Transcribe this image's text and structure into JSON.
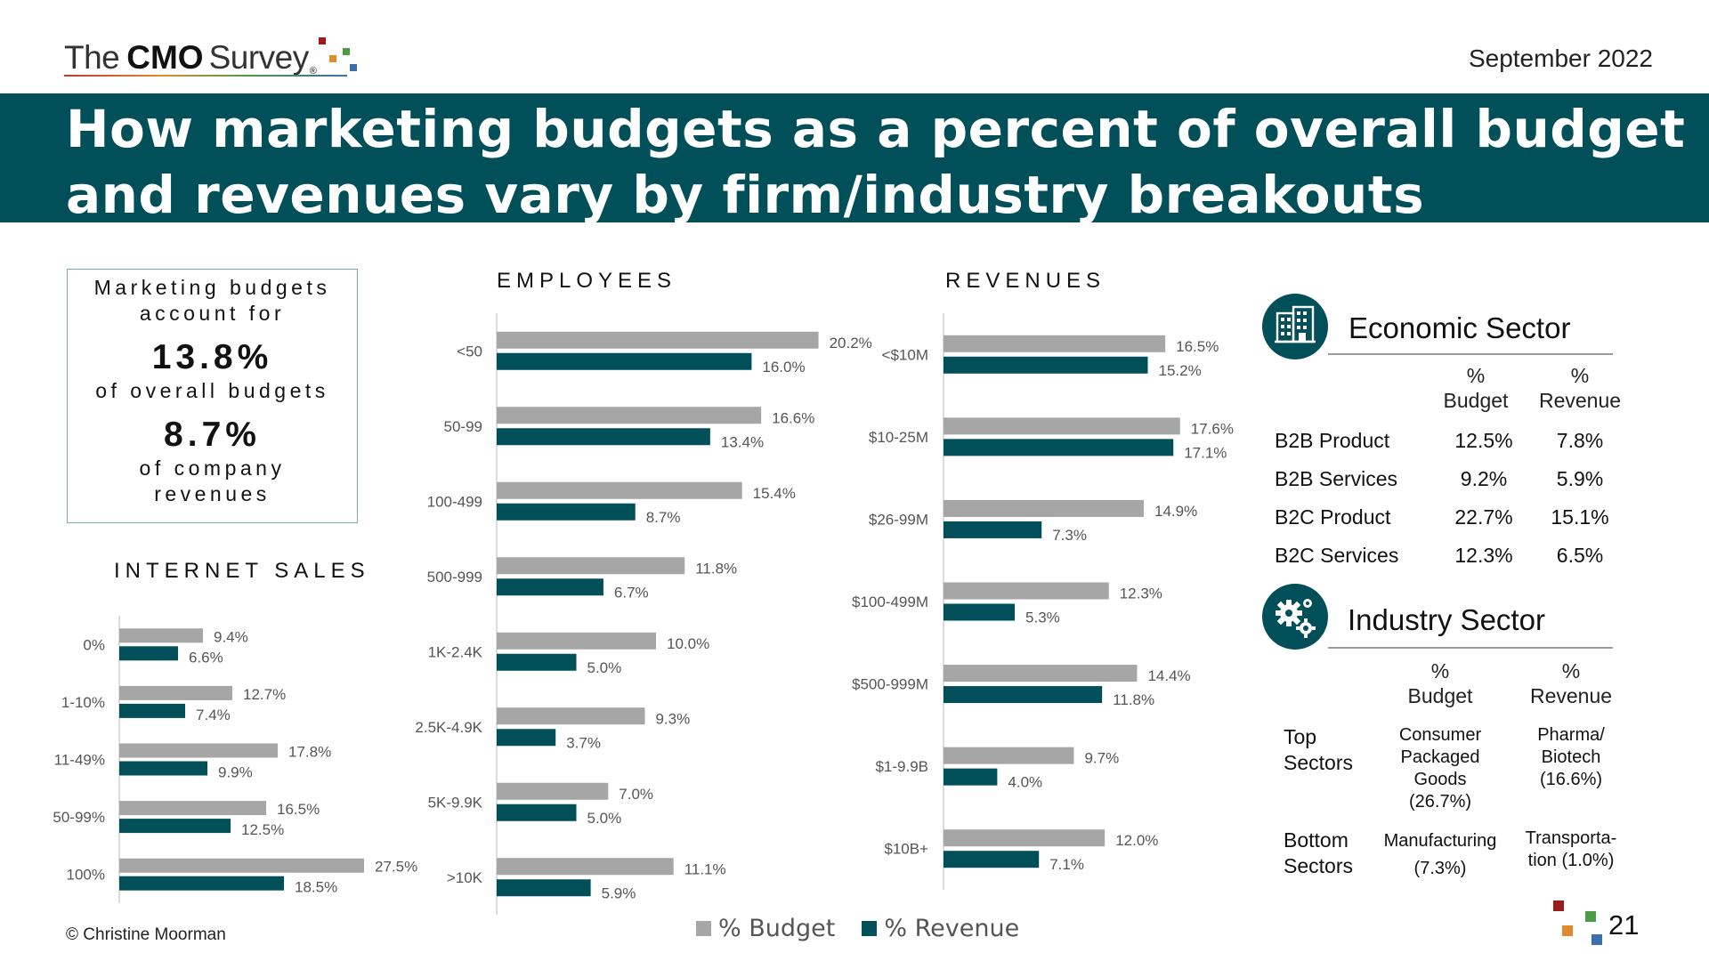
{
  "header": {
    "logo": {
      "the": "The",
      "cmo": "CMO",
      "survey": "Survey",
      "reg": "®"
    },
    "date": "September 2022",
    "title": "How marketing budgets as a percent of overall budget and revenues vary by firm/industry breakouts"
  },
  "summary": {
    "line1": "Marketing budgets",
    "line2": "account for",
    "budget_pct": "13.8%",
    "line3": "of overall budgets",
    "revenue_pct": "8.7%",
    "line4": "of company",
    "line5": "revenues"
  },
  "colors": {
    "budget": "#a6a6a6",
    "revenue": "#004f59",
    "banner": "#004f59"
  },
  "legend": {
    "budget": "% Budget",
    "revenue": "% Revenue"
  },
  "footer": {
    "copyright": "© Christine Moorman",
    "page": "21"
  },
  "chart_data": [
    {
      "type": "bar",
      "title": "INTERNET SALES",
      "orientation": "horizontal",
      "categories": [
        "0%",
        "1-10%",
        "11-49%",
        "50-99%",
        "100%"
      ],
      "series": [
        {
          "name": "% Budget",
          "values": [
            9.4,
            12.7,
            17.8,
            16.5,
            27.5
          ],
          "labels": [
            "9.4%",
            "12.7%",
            "17.8%",
            "16.5%",
            "27.5%"
          ]
        },
        {
          "name": "% Revenue",
          "values": [
            6.6,
            7.4,
            9.9,
            12.5,
            18.5
          ],
          "labels": [
            "6.6%",
            "7.4%",
            "9.9%",
            "12.5%",
            "18.5%"
          ]
        }
      ],
      "xlim": [
        0,
        30
      ]
    },
    {
      "type": "bar",
      "title": "EMPLOYEES",
      "orientation": "horizontal",
      "categories": [
        "<50",
        "50-99",
        "100-499",
        "500-999",
        "1K-2.4K",
        "2.5K-4.9K",
        "5K-9.9K",
        ">10K"
      ],
      "series": [
        {
          "name": "% Budget",
          "values": [
            20.2,
            16.6,
            15.4,
            11.8,
            10.0,
            9.3,
            7.0,
            11.1
          ],
          "labels": [
            "20.2%",
            "16.6%",
            "15.4%",
            "11.8%",
            "10.0%",
            "9.3%",
            "7.0%",
            "11.1%"
          ]
        },
        {
          "name": "% Revenue",
          "values": [
            16.0,
            13.4,
            8.7,
            6.7,
            5.0,
            3.7,
            5.0,
            5.9
          ],
          "labels": [
            "16.0%",
            "13.4%",
            "8.7%",
            "6.7%",
            "5.0%",
            "3.7%",
            "5.0%",
            "5.9%"
          ]
        }
      ],
      "xlim": [
        0,
        22
      ]
    },
    {
      "type": "bar",
      "title": "REVENUES",
      "orientation": "horizontal",
      "categories": [
        "<$10M",
        "$10-25M",
        "$26-99M",
        "$100-499M",
        "$500-999M",
        "$1-9.9B",
        "$10B+"
      ],
      "series": [
        {
          "name": "% Budget",
          "values": [
            16.5,
            17.6,
            14.9,
            12.3,
            14.4,
            9.7,
            12.0
          ],
          "labels": [
            "16.5%",
            "17.6%",
            "14.9%",
            "12.3%",
            "14.4%",
            "9.7%",
            "12.0%"
          ]
        },
        {
          "name": "% Revenue",
          "values": [
            15.2,
            17.1,
            7.3,
            5.3,
            11.8,
            4.0,
            7.1
          ],
          "labels": [
            "15.2%",
            "17.1%",
            "7.3%",
            "5.3%",
            "11.8%",
            "4.0%",
            "7.1%"
          ]
        }
      ],
      "xlim": [
        0,
        20
      ]
    },
    {
      "type": "table",
      "title": "Economic Sector",
      "columns": [
        "% Budget",
        "% Revenue"
      ],
      "rows": [
        {
          "label": "B2B Product",
          "budget": "12.5%",
          "revenue": "7.8%"
        },
        {
          "label": "B2B Services",
          "budget": "9.2%",
          "revenue": "5.9%"
        },
        {
          "label": "B2C Product",
          "budget": "22.7%",
          "revenue": "15.1%"
        },
        {
          "label": "B2C Services",
          "budget": "12.3%",
          "revenue": "6.5%"
        }
      ]
    },
    {
      "type": "table",
      "title": "Industry Sector",
      "columns": [
        "% Budget",
        "% Revenue"
      ],
      "rows": [
        {
          "label": "Top Sectors",
          "budget": "Consumer Packaged Goods (26.7%)",
          "revenue": "Pharma/ Biotech (16.6%)"
        },
        {
          "label": "Bottom Sectors",
          "budget": "Manufacturing (7.3%)",
          "revenue": "Transporta-tion (1.0%)"
        }
      ]
    }
  ],
  "sectors": {
    "economic": {
      "title": "Economic Sector",
      "col_budget": [
        "%",
        "Budget"
      ],
      "col_revenue": [
        "%",
        "Revenue"
      ],
      "rows": [
        {
          "label": "B2B Product",
          "budget": "12.5%",
          "revenue": "7.8%"
        },
        {
          "label": "B2B Services",
          "budget": "9.2%",
          "revenue": "5.9%"
        },
        {
          "label": "B2C Product",
          "budget": "22.7%",
          "revenue": "15.1%"
        },
        {
          "label": "B2C Services",
          "budget": "12.3%",
          "revenue": "6.5%"
        }
      ]
    },
    "industry": {
      "title": "Industry Sector",
      "col_budget": [
        "%",
        "Budget"
      ],
      "col_revenue": [
        "%",
        "Revenue"
      ],
      "top": {
        "label": [
          "Top",
          "Sectors"
        ],
        "budget": [
          "Consumer",
          "Packaged",
          "Goods",
          "(26.7%)"
        ],
        "revenue": [
          "Pharma/",
          "Biotech",
          "(16.6%)"
        ]
      },
      "bottom": {
        "label": [
          "Bottom",
          "Sectors"
        ],
        "budget": [
          "Manufacturing",
          "(7.3%)"
        ],
        "revenue": [
          "Transporta-",
          "tion (1.0%)"
        ]
      }
    }
  }
}
